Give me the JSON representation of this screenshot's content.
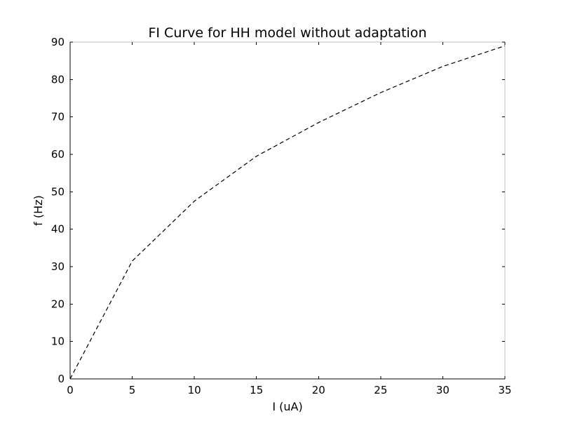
{
  "chart_data": {
    "type": "line",
    "title": "FI Curve for HH model without adaptation",
    "xlabel": "I (uA)",
    "ylabel": "f (Hz)",
    "xlim": [
      0,
      35
    ],
    "ylim": [
      0,
      90
    ],
    "xticks": [
      0,
      5,
      10,
      15,
      20,
      25,
      30,
      35
    ],
    "yticks": [
      0,
      10,
      20,
      30,
      40,
      50,
      60,
      70,
      80,
      90
    ],
    "xtick_labels": [
      "0",
      "5",
      "10",
      "15",
      "20",
      "25",
      "30",
      "35"
    ],
    "ytick_labels": [
      "0",
      "10",
      "20",
      "30",
      "40",
      "50",
      "60",
      "70",
      "80",
      "90"
    ],
    "grid": false,
    "series": [
      {
        "color": "#000000",
        "line_style": "dashed",
        "x": [
          0,
          5,
          10,
          15,
          20,
          25,
          30,
          35
        ],
        "y": [
          0,
          31.5,
          47.5,
          59.5,
          68.5,
          76.5,
          83.5,
          89
        ]
      }
    ]
  }
}
